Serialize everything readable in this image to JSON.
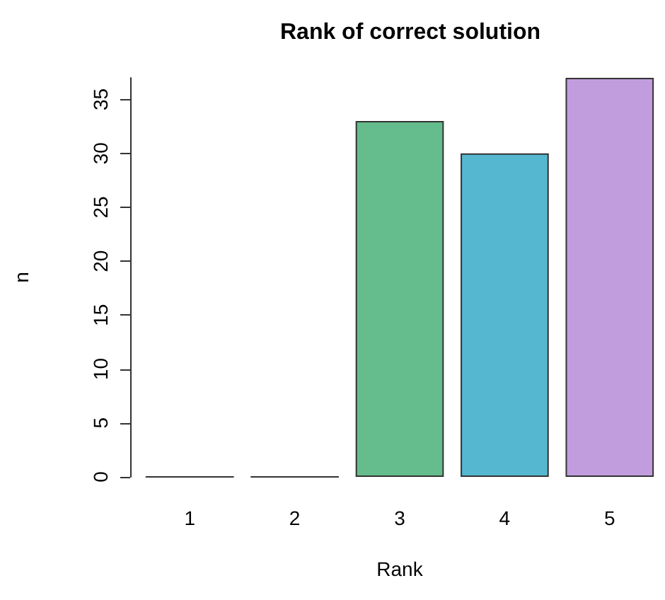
{
  "chart_data": {
    "type": "bar",
    "title": "Rank of correct solution",
    "xlabel": "Rank",
    "ylabel": "n",
    "categories": [
      "1",
      "2",
      "3",
      "4",
      "5"
    ],
    "values": [
      0,
      0,
      33,
      30,
      37
    ],
    "colors": [
      "#e495a5",
      "#bdab66",
      "#65bc8c",
      "#55b8d0",
      "#c29dde"
    ],
    "ylim": [
      0,
      37
    ],
    "yticks": [
      0,
      5,
      10,
      15,
      20,
      25,
      30,
      35
    ]
  }
}
